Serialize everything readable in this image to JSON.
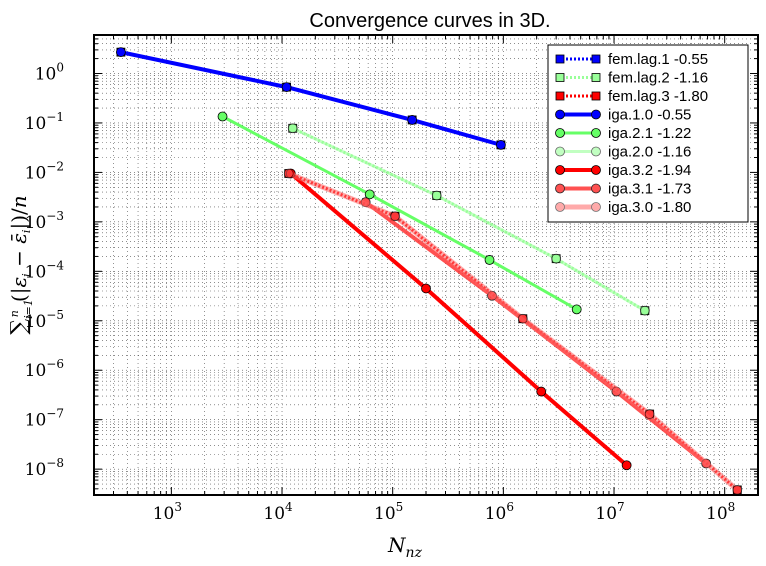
{
  "chart_data": {
    "type": "line",
    "title": "Convergence curves in 3D.",
    "xlabel": "N_nz",
    "ylabel": "Σ_{i=1}^{n} (|ε_i − ε̄_i|)/n",
    "x_scale": "log",
    "y_scale": "log",
    "xlim": [
      200,
      200000000
    ],
    "ylim": [
      3e-09,
      6
    ],
    "x_ticks": [
      {
        "label": "10",
        "exp": "3",
        "value": 1000
      },
      {
        "label": "10",
        "exp": "4",
        "value": 10000
      },
      {
        "label": "10",
        "exp": "5",
        "value": 100000
      },
      {
        "label": "10",
        "exp": "6",
        "value": 1000000
      },
      {
        "label": "10",
        "exp": "7",
        "value": 10000000
      },
      {
        "label": "10",
        "exp": "8",
        "value": 100000000
      }
    ],
    "y_ticks": [
      {
        "label": "10",
        "exp": "0",
        "value": 1
      },
      {
        "label": "10",
        "exp": "−1",
        "value": 0.1
      },
      {
        "label": "10",
        "exp": "−2",
        "value": 0.01
      },
      {
        "label": "10",
        "exp": "−3",
        "value": 0.001
      },
      {
        "label": "10",
        "exp": "−4",
        "value": 0.0001
      },
      {
        "label": "10",
        "exp": "−5",
        "value": 1e-05
      },
      {
        "label": "10",
        "exp": "−6",
        "value": 1e-06
      },
      {
        "label": "10",
        "exp": "−7",
        "value": 1e-07
      },
      {
        "label": "10",
        "exp": "−8",
        "value": 1e-08
      }
    ],
    "grid": true,
    "legend_position": "top-right",
    "series": [
      {
        "name": "fem.lag.1 -0.55",
        "color": "#0000ff",
        "marker": "square",
        "line": "dotted",
        "width": 3,
        "opacity": 1,
        "points": [
          [
            350,
            2.7
          ],
          [
            11000,
            0.53
          ],
          [
            150000,
            0.115
          ],
          [
            950000,
            0.036
          ]
        ]
      },
      {
        "name": "fem.lag.2 -1.16",
        "color": "#99ff99",
        "marker": "square",
        "line": "dotted",
        "width": 3,
        "opacity": 1,
        "points": [
          [
            12500,
            0.078
          ],
          [
            250000,
            0.0034
          ],
          [
            3000000,
            0.00018
          ],
          [
            19000000,
            1.6e-05
          ]
        ]
      },
      {
        "name": "fem.lag.3 -1.80",
        "color": "#ff0000",
        "marker": "square",
        "line": "dotted",
        "width": 3,
        "opacity": 1,
        "points": [
          [
            11500,
            0.0095
          ],
          [
            105000,
            0.0013
          ],
          [
            1500000,
            1.1e-05
          ],
          [
            21000000,
            1.3e-07
          ],
          [
            130000000,
            3.8e-09
          ]
        ]
      },
      {
        "name": "iga.1.0 -0.55",
        "color": "#0000ff",
        "marker": "circle",
        "line": "solid",
        "width": 4,
        "opacity": 1,
        "points": [
          [
            350,
            2.7
          ],
          [
            11000,
            0.53
          ],
          [
            150000,
            0.115
          ],
          [
            950000,
            0.036
          ]
        ]
      },
      {
        "name": "iga.2.1 -1.22",
        "color": "#66ff66",
        "marker": "circle",
        "line": "solid",
        "width": 3,
        "opacity": 1,
        "points": [
          [
            2900,
            0.135
          ],
          [
            62000,
            0.0036
          ],
          [
            750000,
            0.00017
          ],
          [
            4600000,
            1.7e-05
          ]
        ]
      },
      {
        "name": "iga.2.0 -1.16",
        "color": "#99ff99",
        "marker": "circle",
        "line": "solid",
        "width": 3,
        "opacity": 0.6,
        "points": [
          [
            12500,
            0.078
          ],
          [
            250000,
            0.0034
          ],
          [
            3000000,
            0.00018
          ],
          [
            19000000,
            1.6e-05
          ]
        ]
      },
      {
        "name": "iga.3.2 -1.94",
        "color": "#ff0000",
        "marker": "circle",
        "line": "solid",
        "width": 4,
        "opacity": 1,
        "points": [
          [
            12000,
            0.0095
          ],
          [
            200000,
            4.5e-05
          ],
          [
            2200000,
            3.7e-07
          ],
          [
            13000000,
            1.2e-08
          ]
        ]
      },
      {
        "name": "iga.3.1 -1.73",
        "color": "#ff3333",
        "marker": "circle",
        "line": "solid",
        "width": 4,
        "opacity": 0.85,
        "points": [
          [
            57000,
            0.0025
          ],
          [
            790000,
            3.2e-05
          ],
          [
            10500000,
            3.7e-07
          ],
          [
            68000000,
            1.3e-08
          ]
        ]
      },
      {
        "name": "iga.3.0 -1.80",
        "color": "#ff6666",
        "marker": "circle",
        "line": "solid",
        "width": 5,
        "opacity": 0.55,
        "points": [
          [
            11500,
            0.0095
          ],
          [
            105000,
            0.0013
          ],
          [
            1500000,
            1.1e-05
          ],
          [
            21000000,
            1.3e-07
          ],
          [
            130000000,
            3.8e-09
          ]
        ]
      }
    ]
  }
}
